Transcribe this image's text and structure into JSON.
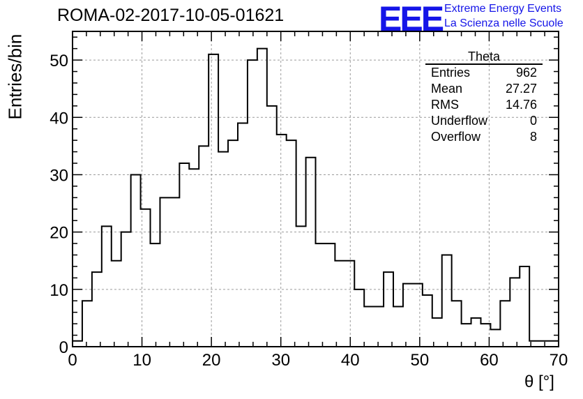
{
  "header": {
    "title": "ROMA-02-2017-10-05-01621",
    "logo_text": "EEE",
    "logo_line1": "Extreme Energy Events",
    "logo_line2": "La Scienza nelle Scuole"
  },
  "stats": {
    "title": "Theta",
    "rows": [
      {
        "label": "Entries",
        "value": "962"
      },
      {
        "label": "Mean",
        "value": "27.27"
      },
      {
        "label": "RMS",
        "value": "14.76"
      },
      {
        "label": "Underflow",
        "value": "0"
      },
      {
        "label": "Overflow",
        "value": "8"
      }
    ]
  },
  "colors": {
    "histogram": "#000000",
    "grid": "#9a9a9a",
    "logo": "#1515e8"
  },
  "chart_data": {
    "type": "bar",
    "style": "step-histogram",
    "title": "ROMA-02-2017-10-05-01621",
    "xlabel": "θ [°]",
    "ylabel": "Entries/bin",
    "xlim": [
      0,
      70
    ],
    "ylim": [
      0,
      55
    ],
    "grid": true,
    "bin_width": 1.4,
    "x_ticks": [
      0,
      10,
      20,
      30,
      40,
      50,
      60,
      70
    ],
    "y_ticks": [
      0,
      10,
      20,
      30,
      40,
      50
    ],
    "values": [
      1,
      8,
      13,
      21,
      15,
      20,
      30,
      24,
      18,
      26,
      26,
      32,
      31,
      35,
      51,
      34,
      36,
      39,
      50,
      52,
      42,
      37,
      36,
      21,
      33,
      18,
      18,
      15,
      15,
      10,
      7,
      7,
      13,
      7,
      11,
      11,
      9,
      5,
      16,
      8,
      4,
      5,
      4,
      3,
      8,
      12,
      14,
      1,
      1,
      1
    ]
  }
}
